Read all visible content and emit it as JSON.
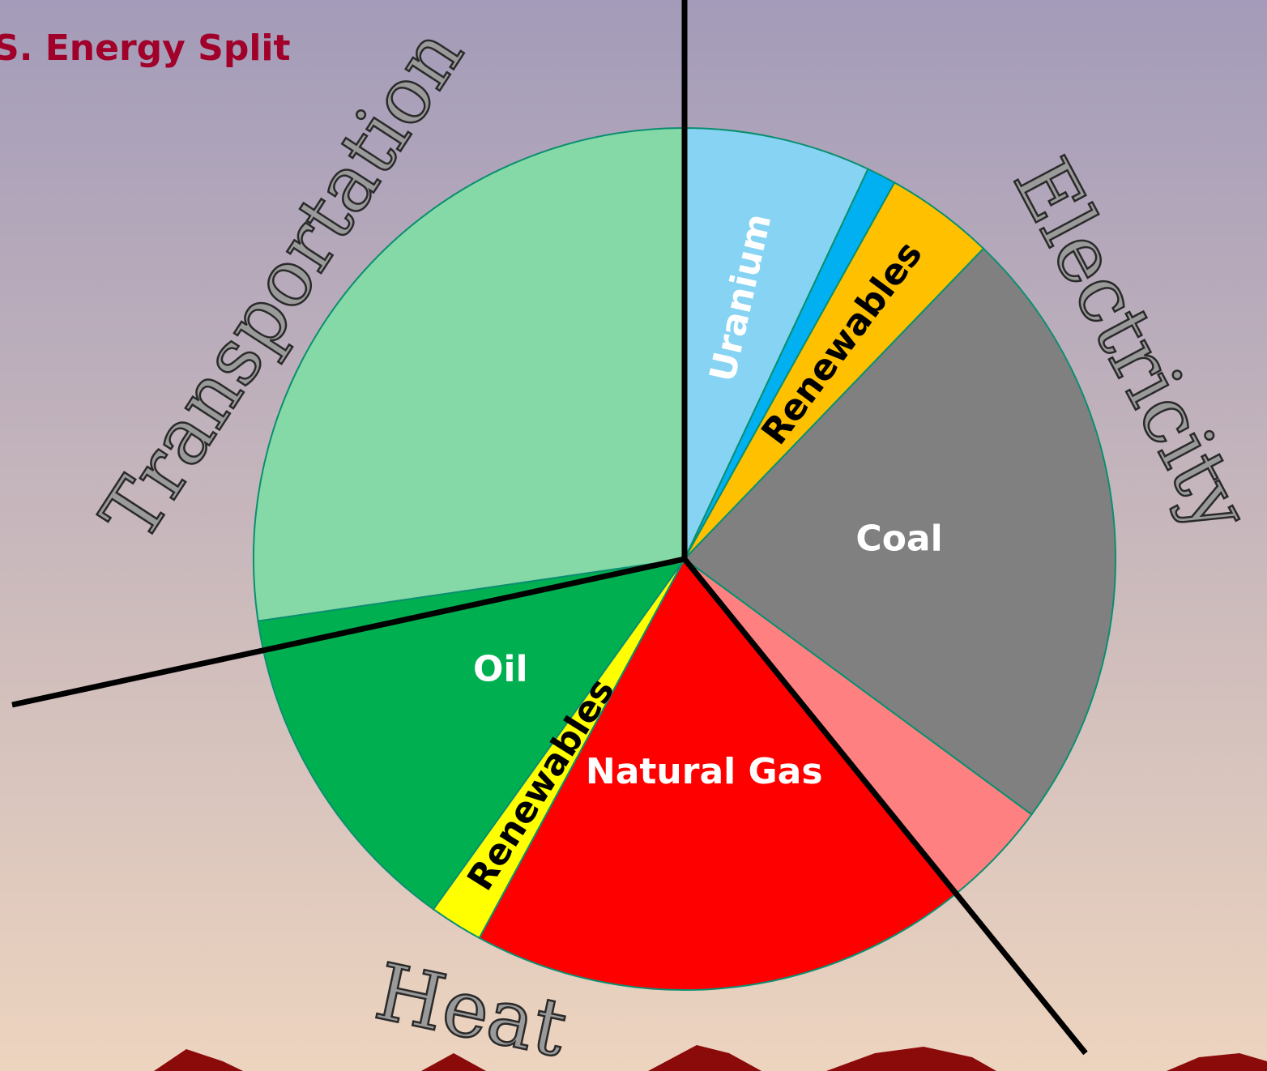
{
  "chart_data": {
    "type": "pie",
    "title": "S. Energy Split",
    "categories": [
      "Uranium",
      null,
      "Renewables",
      "Coal",
      null,
      "Natural Gas",
      "Renewables",
      "Oil",
      null
    ],
    "values": [
      7.0,
      1.1,
      4.1,
      22.9,
      4.1,
      18.7,
      2.0,
      12.8,
      27.3
    ],
    "colors": [
      "#86d3f3",
      "#00b0f0",
      "#ffc000",
      "#808080",
      "#ff8080",
      "#ff0000",
      "#ffff00",
      "#00b050",
      "#84d9a6"
    ],
    "label_colors": [
      "#ffffff",
      null,
      "#000000",
      "#ffffff",
      null,
      "#ffffff",
      "#000000",
      "#ffffff",
      null
    ],
    "groups": [
      "Electricity",
      "Heat",
      "Transportation"
    ]
  }
}
